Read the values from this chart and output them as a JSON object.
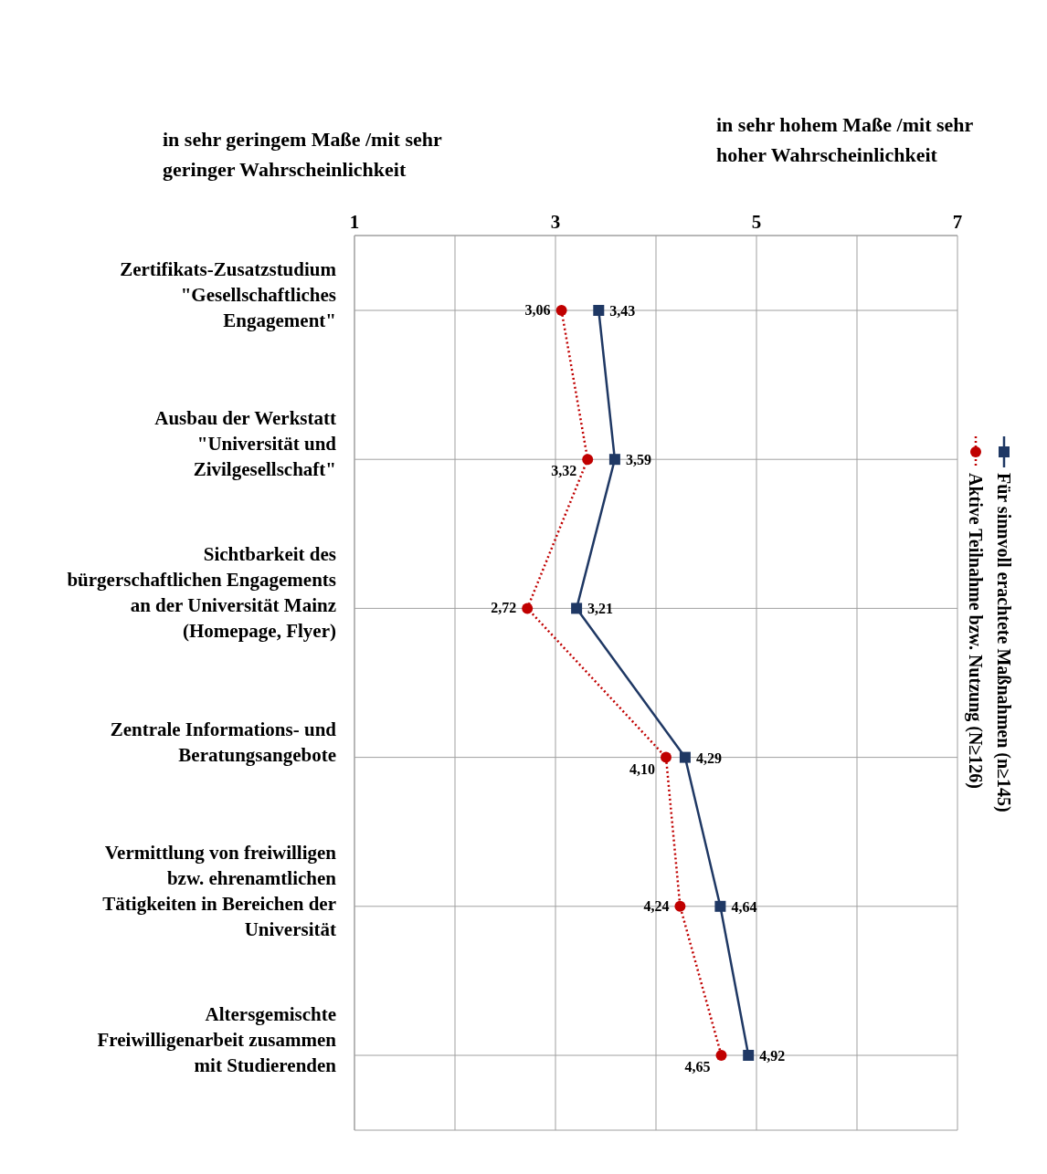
{
  "chart_data": {
    "type": "line",
    "orientation": "horizontal",
    "annotations": [
      "in sehr geringem Maße /mit sehr geringer Wahrscheinlichkeit",
      "in sehr hohem Maße /mit sehr hoher Wahrscheinlichkeit"
    ],
    "categories": [
      "Zertifikats-Zusatzstudium \"Gesellschaftliches Engagement\"",
      "Ausbau der Werkstatt \"Universität und Zivilgesellschaft\"",
      "Sichtbarkeit des bürgerschaftlichen Engagements an der Universität Mainz (Homepage, Flyer)",
      "Zentrale Informations- und Beratungsangebote",
      "Vermittlung von freiwilligen bzw. ehrenamtlichen Tätigkeiten in Bereichen der Universität",
      "Altersgemischte Freiwilligenarbeit zusammen mit Studierenden"
    ],
    "series": [
      {
        "name": "Für sinnvoll erachtete Maßnahmen (n≥145)",
        "color": "#1f3864",
        "marker": "square",
        "line_style": "solid",
        "values": [
          3.43,
          3.59,
          3.21,
          4.29,
          4.64,
          4.92
        ],
        "value_labels": [
          "3,43",
          "3,59",
          "3,21",
          "4,29",
          "4,64",
          "4,92"
        ]
      },
      {
        "name": "Aktive Teilnahme bzw. Nutzung (N≥126)",
        "color": "#c00000",
        "marker": "circle",
        "line_style": "dotted",
        "values": [
          3.06,
          3.32,
          2.72,
          4.1,
          4.24,
          4.65
        ],
        "value_labels": [
          "3,06",
          "3,32",
          "2,72",
          "4,10",
          "4,24",
          "4,65"
        ]
      }
    ],
    "xlim": [
      1,
      7
    ],
    "xticks": [
      1,
      {
        "value": 2,
        "label": null
      },
      3,
      {
        "value": 4,
        "label": null
      },
      5,
      {
        "value": 6,
        "label": null
      },
      7
    ],
    "grid": true,
    "legend": "right"
  }
}
